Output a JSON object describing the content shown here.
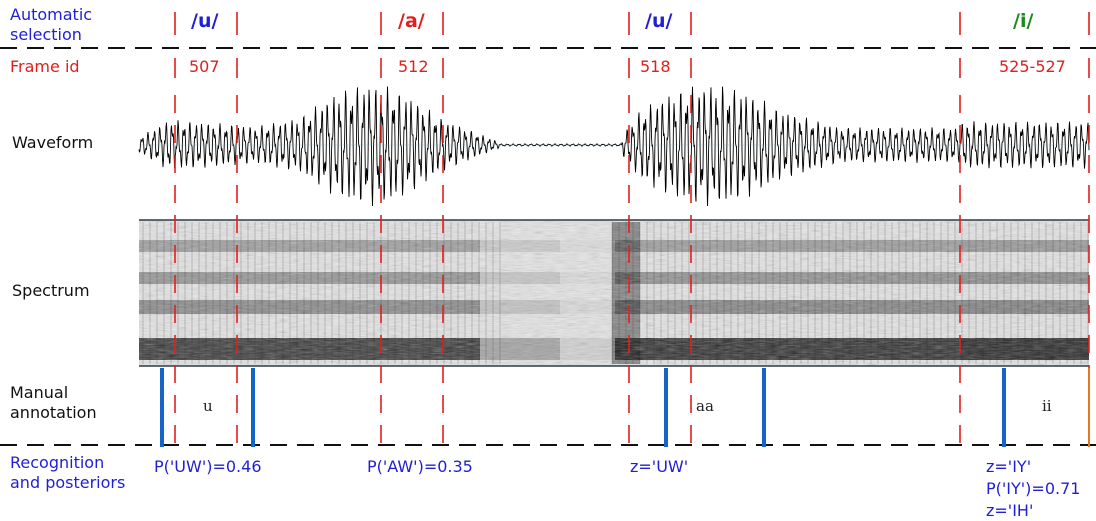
{
  "row_labels": {
    "auto_sel_1": "Automatic",
    "auto_sel_2": "selection",
    "frame_id": "Frame id",
    "waveform": "Waveform",
    "spectrum": "Spectrum",
    "manual_1": "Manual",
    "manual_2": "annotation",
    "recog_1": "Recognition",
    "recog_2": "and posteriors"
  },
  "phonemes": [
    {
      "text": "/u/",
      "color": "#1f1fd6"
    },
    {
      "text": "/a/",
      "color": "#e0201d"
    },
    {
      "text": "/u/",
      "color": "#1f1fd6"
    },
    {
      "text": "/i/",
      "color": "#1e8a1e"
    }
  ],
  "frame_ids": [
    "507",
    "512",
    "518",
    "525-527"
  ],
  "manual_annotations": [
    "u",
    "aa",
    "ii"
  ],
  "recognition": {
    "r1": "P('UW')=0.46",
    "r2": "P('AW')=0.35",
    "r3": "z='UW'",
    "r4a": "z='IY'",
    "r4b": "P('IY')=0.71",
    "r4c": "z='IH'"
  },
  "colors": {
    "label_blue": "#1f1fd6",
    "frame_red": "#e0201d",
    "annotation_bar": "#1565c8",
    "waveform": "#000000"
  }
}
